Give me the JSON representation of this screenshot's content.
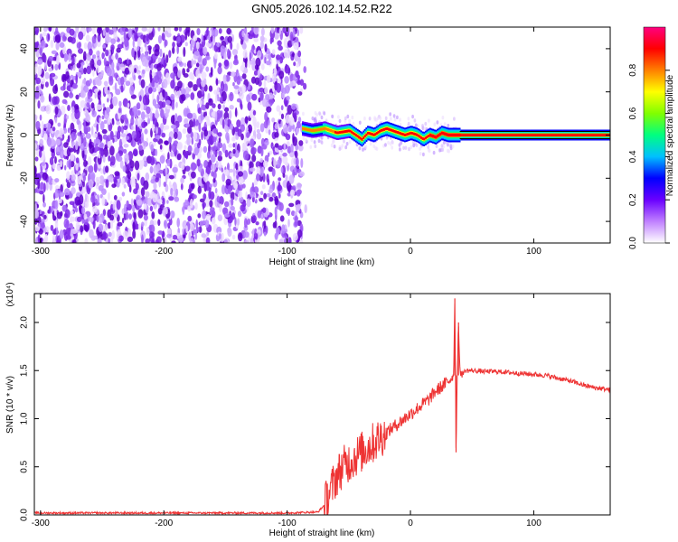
{
  "chart_data": [
    {
      "type": "heatmap",
      "title": "GN05.2026.102.14.52.R22",
      "xlabel": "Height of straight line (km)",
      "ylabel": "Frequency (Hz)",
      "xlim": [
        -305,
        162
      ],
      "ylim": [
        -50,
        50
      ],
      "x_ticks": [
        -300,
        -200,
        -100,
        0,
        100
      ],
      "y_ticks": [
        -40,
        -20,
        0,
        20,
        40
      ],
      "colorbar": {
        "label": "Normalized spectral amplitude",
        "range": [
          0,
          1
        ],
        "ticks": [
          "0.0",
          "0.2",
          "0.4",
          "0.6",
          "0.8"
        ],
        "colors": [
          "#ffffff",
          "#c080ff",
          "#6a00ff",
          "#0000ff",
          "#00c0ff",
          "#00ff80",
          "#80ff00",
          "#ffff00",
          "#ff8000",
          "#ff0000",
          "#ff0080"
        ]
      },
      "noise_region_x": [
        -305,
        -88
      ],
      "signal_track": {
        "x": [
          -88,
          -80,
          -70,
          -60,
          -50,
          -45,
          -40,
          -35,
          -30,
          -25,
          -20,
          -15,
          -10,
          -5,
          0,
          5,
          10,
          15,
          20,
          25,
          30,
          40,
          60,
          100,
          162
        ],
        "frequency": [
          3,
          2,
          3,
          1,
          2,
          0,
          -2,
          1,
          0,
          2,
          3,
          2,
          1,
          0,
          1,
          0,
          -2,
          0,
          -1,
          1,
          0,
          0,
          0,
          0,
          0
        ],
        "amplitude": [
          0.55,
          0.6,
          0.65,
          0.75,
          0.8,
          0.85,
          0.8,
          0.8,
          0.85,
          0.85,
          0.9,
          0.85,
          0.85,
          0.9,
          0.9,
          0.9,
          0.9,
          0.95,
          0.95,
          0.95,
          0.95,
          0.95,
          0.95,
          0.95,
          0.95
        ]
      }
    },
    {
      "type": "line",
      "xlabel": "Height of straight line (km)",
      "ylabel": "SNR (10 * v/v)",
      "y_multiplier": "(x10⁴)",
      "xlim": [
        -305,
        162
      ],
      "ylim": [
        0,
        2.3
      ],
      "x_ticks": [
        -300,
        -200,
        -100,
        0,
        100
      ],
      "y_ticks": [
        "0.0",
        "0.5",
        "1.0",
        "1.5",
        "2.0"
      ],
      "color": "#ee3333",
      "series": [
        {
          "x": [
            -305,
            -250,
            -200,
            -150,
            -100,
            -75,
            -70,
            -65,
            -60,
            -55,
            -50,
            -45,
            -40,
            -35,
            -30,
            -25,
            -20,
            -15,
            -10,
            -5,
            0,
            5,
            10,
            15,
            20,
            25,
            30,
            33,
            35,
            36,
            37,
            38,
            39,
            40,
            42,
            45,
            50,
            60,
            70,
            80,
            90,
            100,
            110,
            120,
            130,
            140,
            150,
            162
          ],
          "y": [
            0.02,
            0.02,
            0.02,
            0.02,
            0.02,
            0.03,
            0.1,
            0.25,
            0.4,
            0.5,
            0.55,
            0.6,
            0.65,
            0.7,
            0.75,
            0.8,
            0.85,
            0.9,
            0.95,
            1.0,
            1.05,
            1.1,
            1.15,
            1.2,
            1.28,
            1.33,
            1.38,
            1.42,
            1.45,
            2.25,
            0.65,
            1.5,
            2.0,
            1.5,
            1.47,
            1.5,
            1.5,
            1.49,
            1.49,
            1.48,
            1.47,
            1.46,
            1.45,
            1.42,
            1.39,
            1.35,
            1.32,
            1.3
          ]
        }
      ]
    }
  ]
}
